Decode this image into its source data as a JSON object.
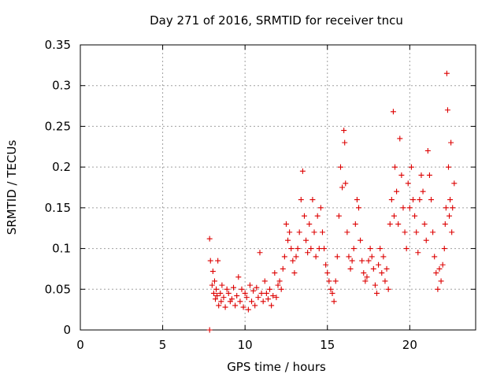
{
  "colors": {
    "series": "#dd0000",
    "grid": "#a0a0a0",
    "axis": "#000000",
    "background": "#ffffff"
  },
  "chart_data": {
    "type": "scatter",
    "title": "Day 271 of 2016, SRMTID for receiver tncu",
    "xlabel": "GPS time / hours",
    "ylabel": "SRMTID / TECUs",
    "xlim": [
      0,
      24
    ],
    "ylim": [
      0,
      0.35
    ],
    "x_ticks": [
      0,
      5,
      10,
      15,
      20
    ],
    "x_tick_labels": [
      "0",
      "5",
      "10",
      "15",
      "20"
    ],
    "y_ticks": [
      0,
      0.05,
      0.1,
      0.15,
      0.2,
      0.25,
      0.3,
      0.35
    ],
    "y_tick_labels": [
      "0",
      "0.05",
      "0.1",
      "0.15",
      "0.2",
      "0.25",
      "0.3",
      "0.35"
    ],
    "grid": true,
    "marker": "plus",
    "series": [
      {
        "name": "SRMTID",
        "x": [
          7.85,
          7.85,
          7.9,
          8.0,
          8.05,
          8.1,
          8.15,
          8.2,
          8.25,
          8.3,
          8.35,
          8.4,
          8.5,
          8.55,
          8.6,
          8.7,
          8.8,
          8.9,
          9.0,
          9.1,
          9.2,
          9.3,
          9.4,
          9.5,
          9.6,
          9.7,
          9.8,
          9.9,
          10.0,
          10.1,
          10.2,
          10.3,
          10.4,
          10.5,
          10.6,
          10.7,
          10.8,
          10.9,
          11.0,
          11.1,
          11.2,
          11.3,
          11.4,
          11.5,
          11.6,
          11.7,
          11.8,
          11.9,
          12.0,
          12.1,
          12.2,
          12.3,
          12.4,
          12.5,
          12.6,
          12.7,
          12.8,
          12.9,
          13.0,
          13.1,
          13.2,
          13.3,
          13.4,
          13.5,
          13.6,
          13.7,
          13.8,
          13.9,
          14.0,
          14.1,
          14.2,
          14.3,
          14.4,
          14.5,
          14.6,
          14.7,
          14.8,
          14.9,
          15.0,
          15.1,
          15.2,
          15.3,
          15.4,
          15.5,
          15.6,
          15.7,
          15.8,
          15.9,
          16.0,
          16.05,
          16.1,
          16.2,
          16.3,
          16.4,
          16.5,
          16.6,
          16.7,
          16.8,
          16.9,
          17.0,
          17.1,
          17.2,
          17.3,
          17.4,
          17.5,
          17.6,
          17.7,
          17.8,
          17.9,
          18.0,
          18.1,
          18.2,
          18.3,
          18.4,
          18.5,
          18.6,
          18.7,
          18.8,
          18.9,
          19.0,
          19.05,
          19.1,
          19.2,
          19.3,
          19.4,
          19.5,
          19.6,
          19.7,
          19.8,
          19.9,
          20.0,
          20.1,
          20.2,
          20.3,
          20.4,
          20.5,
          20.6,
          20.7,
          20.8,
          20.9,
          21.0,
          21.1,
          21.2,
          21.3,
          21.4,
          21.5,
          21.6,
          21.7,
          21.8,
          21.9,
          22.0,
          22.1,
          22.15,
          22.2,
          22.25,
          22.3,
          22.35,
          22.4,
          22.45,
          22.5,
          22.55,
          22.6,
          22.7
        ],
        "y": [
          0.0,
          0.112,
          0.085,
          0.055,
          0.072,
          0.045,
          0.06,
          0.038,
          0.05,
          0.042,
          0.085,
          0.03,
          0.045,
          0.035,
          0.055,
          0.04,
          0.028,
          0.05,
          0.045,
          0.035,
          0.038,
          0.052,
          0.03,
          0.042,
          0.065,
          0.035,
          0.05,
          0.028,
          0.045,
          0.04,
          0.025,
          0.055,
          0.035,
          0.048,
          0.03,
          0.052,
          0.04,
          0.095,
          0.045,
          0.035,
          0.06,
          0.045,
          0.038,
          0.05,
          0.03,
          0.042,
          0.07,
          0.04,
          0.055,
          0.06,
          0.05,
          0.075,
          0.09,
          0.13,
          0.11,
          0.12,
          0.1,
          0.085,
          0.07,
          0.09,
          0.1,
          0.12,
          0.16,
          0.195,
          0.14,
          0.11,
          0.095,
          0.13,
          0.1,
          0.16,
          0.12,
          0.09,
          0.14,
          0.1,
          0.15,
          0.12,
          0.1,
          0.08,
          0.07,
          0.06,
          0.05,
          0.045,
          0.035,
          0.06,
          0.09,
          0.14,
          0.2,
          0.175,
          0.245,
          0.23,
          0.18,
          0.12,
          0.09,
          0.075,
          0.085,
          0.1,
          0.13,
          0.16,
          0.15,
          0.11,
          0.085,
          0.07,
          0.06,
          0.065,
          0.085,
          0.1,
          0.09,
          0.075,
          0.055,
          0.045,
          0.08,
          0.1,
          0.07,
          0.09,
          0.06,
          0.075,
          0.05,
          0.13,
          0.16,
          0.268,
          0.14,
          0.2,
          0.17,
          0.13,
          0.235,
          0.19,
          0.15,
          0.12,
          0.1,
          0.18,
          0.15,
          0.2,
          0.16,
          0.14,
          0.12,
          0.095,
          0.16,
          0.19,
          0.17,
          0.13,
          0.11,
          0.22,
          0.19,
          0.16,
          0.12,
          0.09,
          0.07,
          0.05,
          0.075,
          0.06,
          0.08,
          0.1,
          0.13,
          0.15,
          0.315,
          0.27,
          0.2,
          0.14,
          0.16,
          0.23,
          0.12,
          0.15,
          0.18
        ]
      }
    ]
  }
}
